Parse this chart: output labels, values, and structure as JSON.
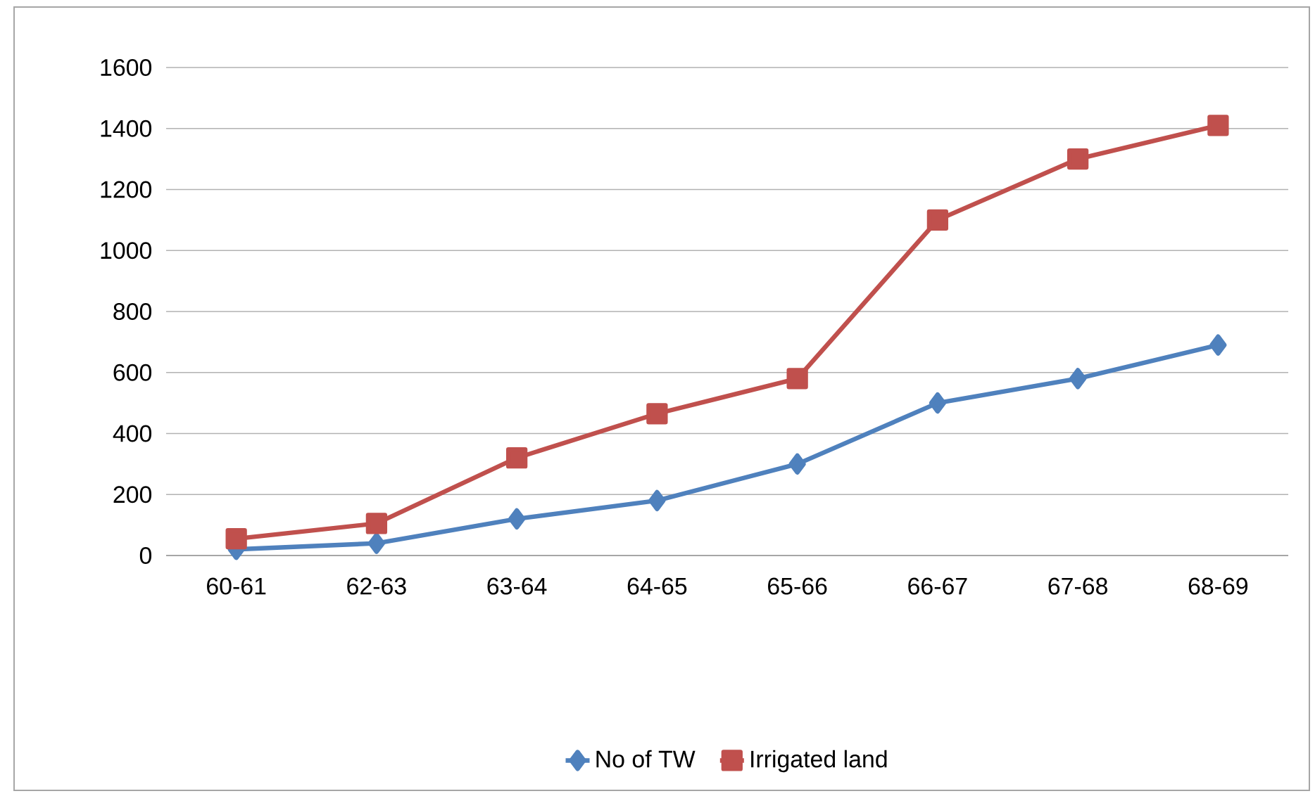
{
  "chart_data": {
    "type": "line",
    "categories": [
      "60-61",
      "62-63",
      "63-64",
      "64-65",
      "65-66",
      "66-67",
      "67-68",
      "68-69"
    ],
    "series": [
      {
        "name": "No of TW",
        "color": "#4f81bd",
        "marker": "diamond",
        "values": [
          20,
          40,
          120,
          180,
          300,
          500,
          580,
          690
        ]
      },
      {
        "name": "Irrigated land",
        "color": "#c0504d",
        "marker": "square",
        "values": [
          55,
          105,
          320,
          465,
          580,
          1100,
          1300,
          1410
        ]
      }
    ],
    "ylim": [
      0,
      1600
    ],
    "yticks": [
      0,
      200,
      400,
      600,
      800,
      1000,
      1200,
      1400,
      1600
    ],
    "grid": "y",
    "legend": "bottom",
    "line_style": "solid"
  }
}
